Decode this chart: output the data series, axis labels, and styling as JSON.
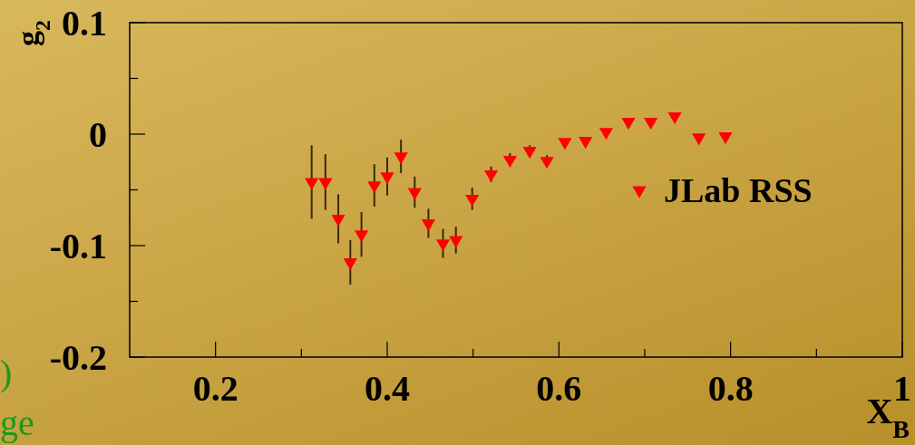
{
  "chart_data": {
    "type": "scatter",
    "xlabel": "X$_{B}$",
    "ylabel": "g$_{2}$",
    "xlim": [
      0.1,
      1
    ],
    "ylim": [
      -0.2,
      0.1
    ],
    "xticks": [
      {
        "value": 0.2,
        "label": "0.2"
      },
      {
        "value": 0.3,
        "label": null
      },
      {
        "value": 0.4,
        "label": "0.4"
      },
      {
        "value": 0.5,
        "label": null
      },
      {
        "value": 0.6,
        "label": "0.6"
      },
      {
        "value": 0.7,
        "label": null
      },
      {
        "value": 0.8,
        "label": "0.8"
      },
      {
        "value": 0.9,
        "label": null
      },
      1
    ],
    "yticks": [
      -0.2,
      {
        "value": -0.15,
        "label": null
      },
      -0.1,
      {
        "value": -0.05,
        "label": null
      },
      0,
      {
        "value": 0.05,
        "label": null
      },
      0.1
    ],
    "marker": "triangle",
    "legend": "right",
    "grid": false,
    "annotations": [
      ")",
      "ge"
    ],
    "series": [
      {
        "name": "JLab RSS",
        "color": "#ff0000",
        "x": [
          0.312,
          0.328,
          0.343,
          0.357,
          0.37,
          0.385,
          0.4,
          0.416,
          0.432,
          0.448,
          0.465,
          0.48,
          0.499,
          0.521,
          0.543,
          0.566,
          0.586,
          0.607,
          0.631,
          0.655,
          0.681,
          0.707,
          0.735,
          0.763,
          0.794
        ],
        "values": [
          -0.043,
          -0.043,
          -0.076,
          -0.115,
          -0.09,
          -0.046,
          -0.038,
          -0.02,
          -0.052,
          -0.08,
          -0.098,
          -0.095,
          -0.058,
          -0.036,
          -0.023,
          -0.015,
          -0.024,
          -0.007,
          -0.006,
          0.002,
          0.011,
          0.011,
          0.016,
          -0.003,
          -0.002
        ],
        "errors": [
          0.033,
          0.025,
          0.022,
          0.02,
          0.02,
          0.019,
          0.017,
          0.015,
          0.014,
          0.013,
          0.013,
          0.012,
          0.01,
          0.007,
          0.006,
          0.005,
          0.005,
          null,
          null,
          null,
          null,
          null,
          null,
          null,
          null
        ]
      }
    ]
  }
}
